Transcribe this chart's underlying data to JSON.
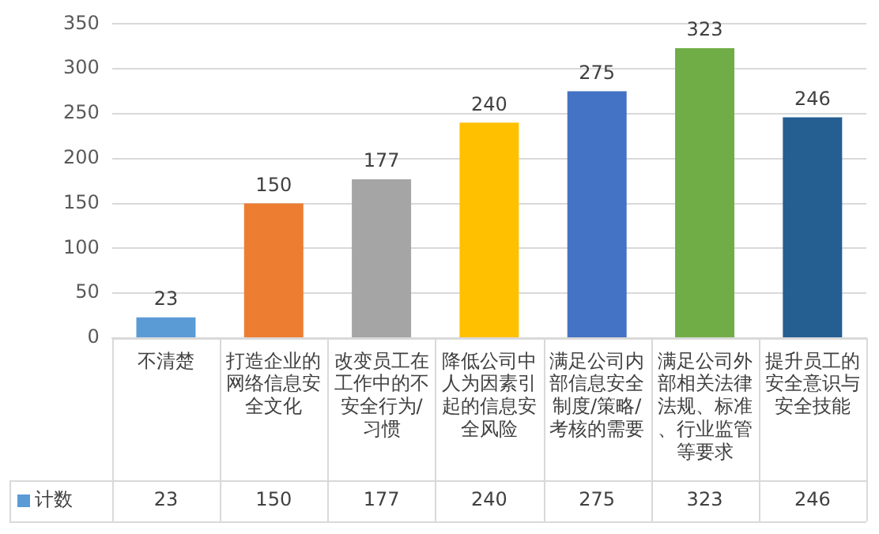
{
  "chart_data": {
    "type": "bar",
    "categories": [
      "不清楚",
      "打造企业的网络信息安全文化",
      "改变员工在工作中的不安全行为/习惯",
      "降低公司中人为因素引起的信息安全风险",
      "满足公司内部信息安全制度/策略/考核的需要",
      "满足公司外部相关法律法规、标准、行业监管等要求",
      "提升员工的安全意识与安全技能"
    ],
    "series": [
      {
        "name": "计数",
        "color": "#5b9bd5",
        "colors": [
          "#5b9bd5",
          "#ed7d31",
          "#a5a5a5",
          "#ffc000",
          "#4472c4",
          "#70ad47",
          "#255e91"
        ],
        "values": [
          23,
          150,
          177,
          240,
          275,
          323,
          246
        ]
      }
    ],
    "annotations": [
      "23",
      "150",
      "177",
      "240",
      "275",
      "323",
      "246"
    ],
    "ylim": [
      0,
      350
    ],
    "yticks": [
      0,
      50,
      100,
      150,
      200,
      250,
      300,
      350
    ],
    "grid": "y",
    "legend": "bottom left",
    "data_labels": true
  }
}
